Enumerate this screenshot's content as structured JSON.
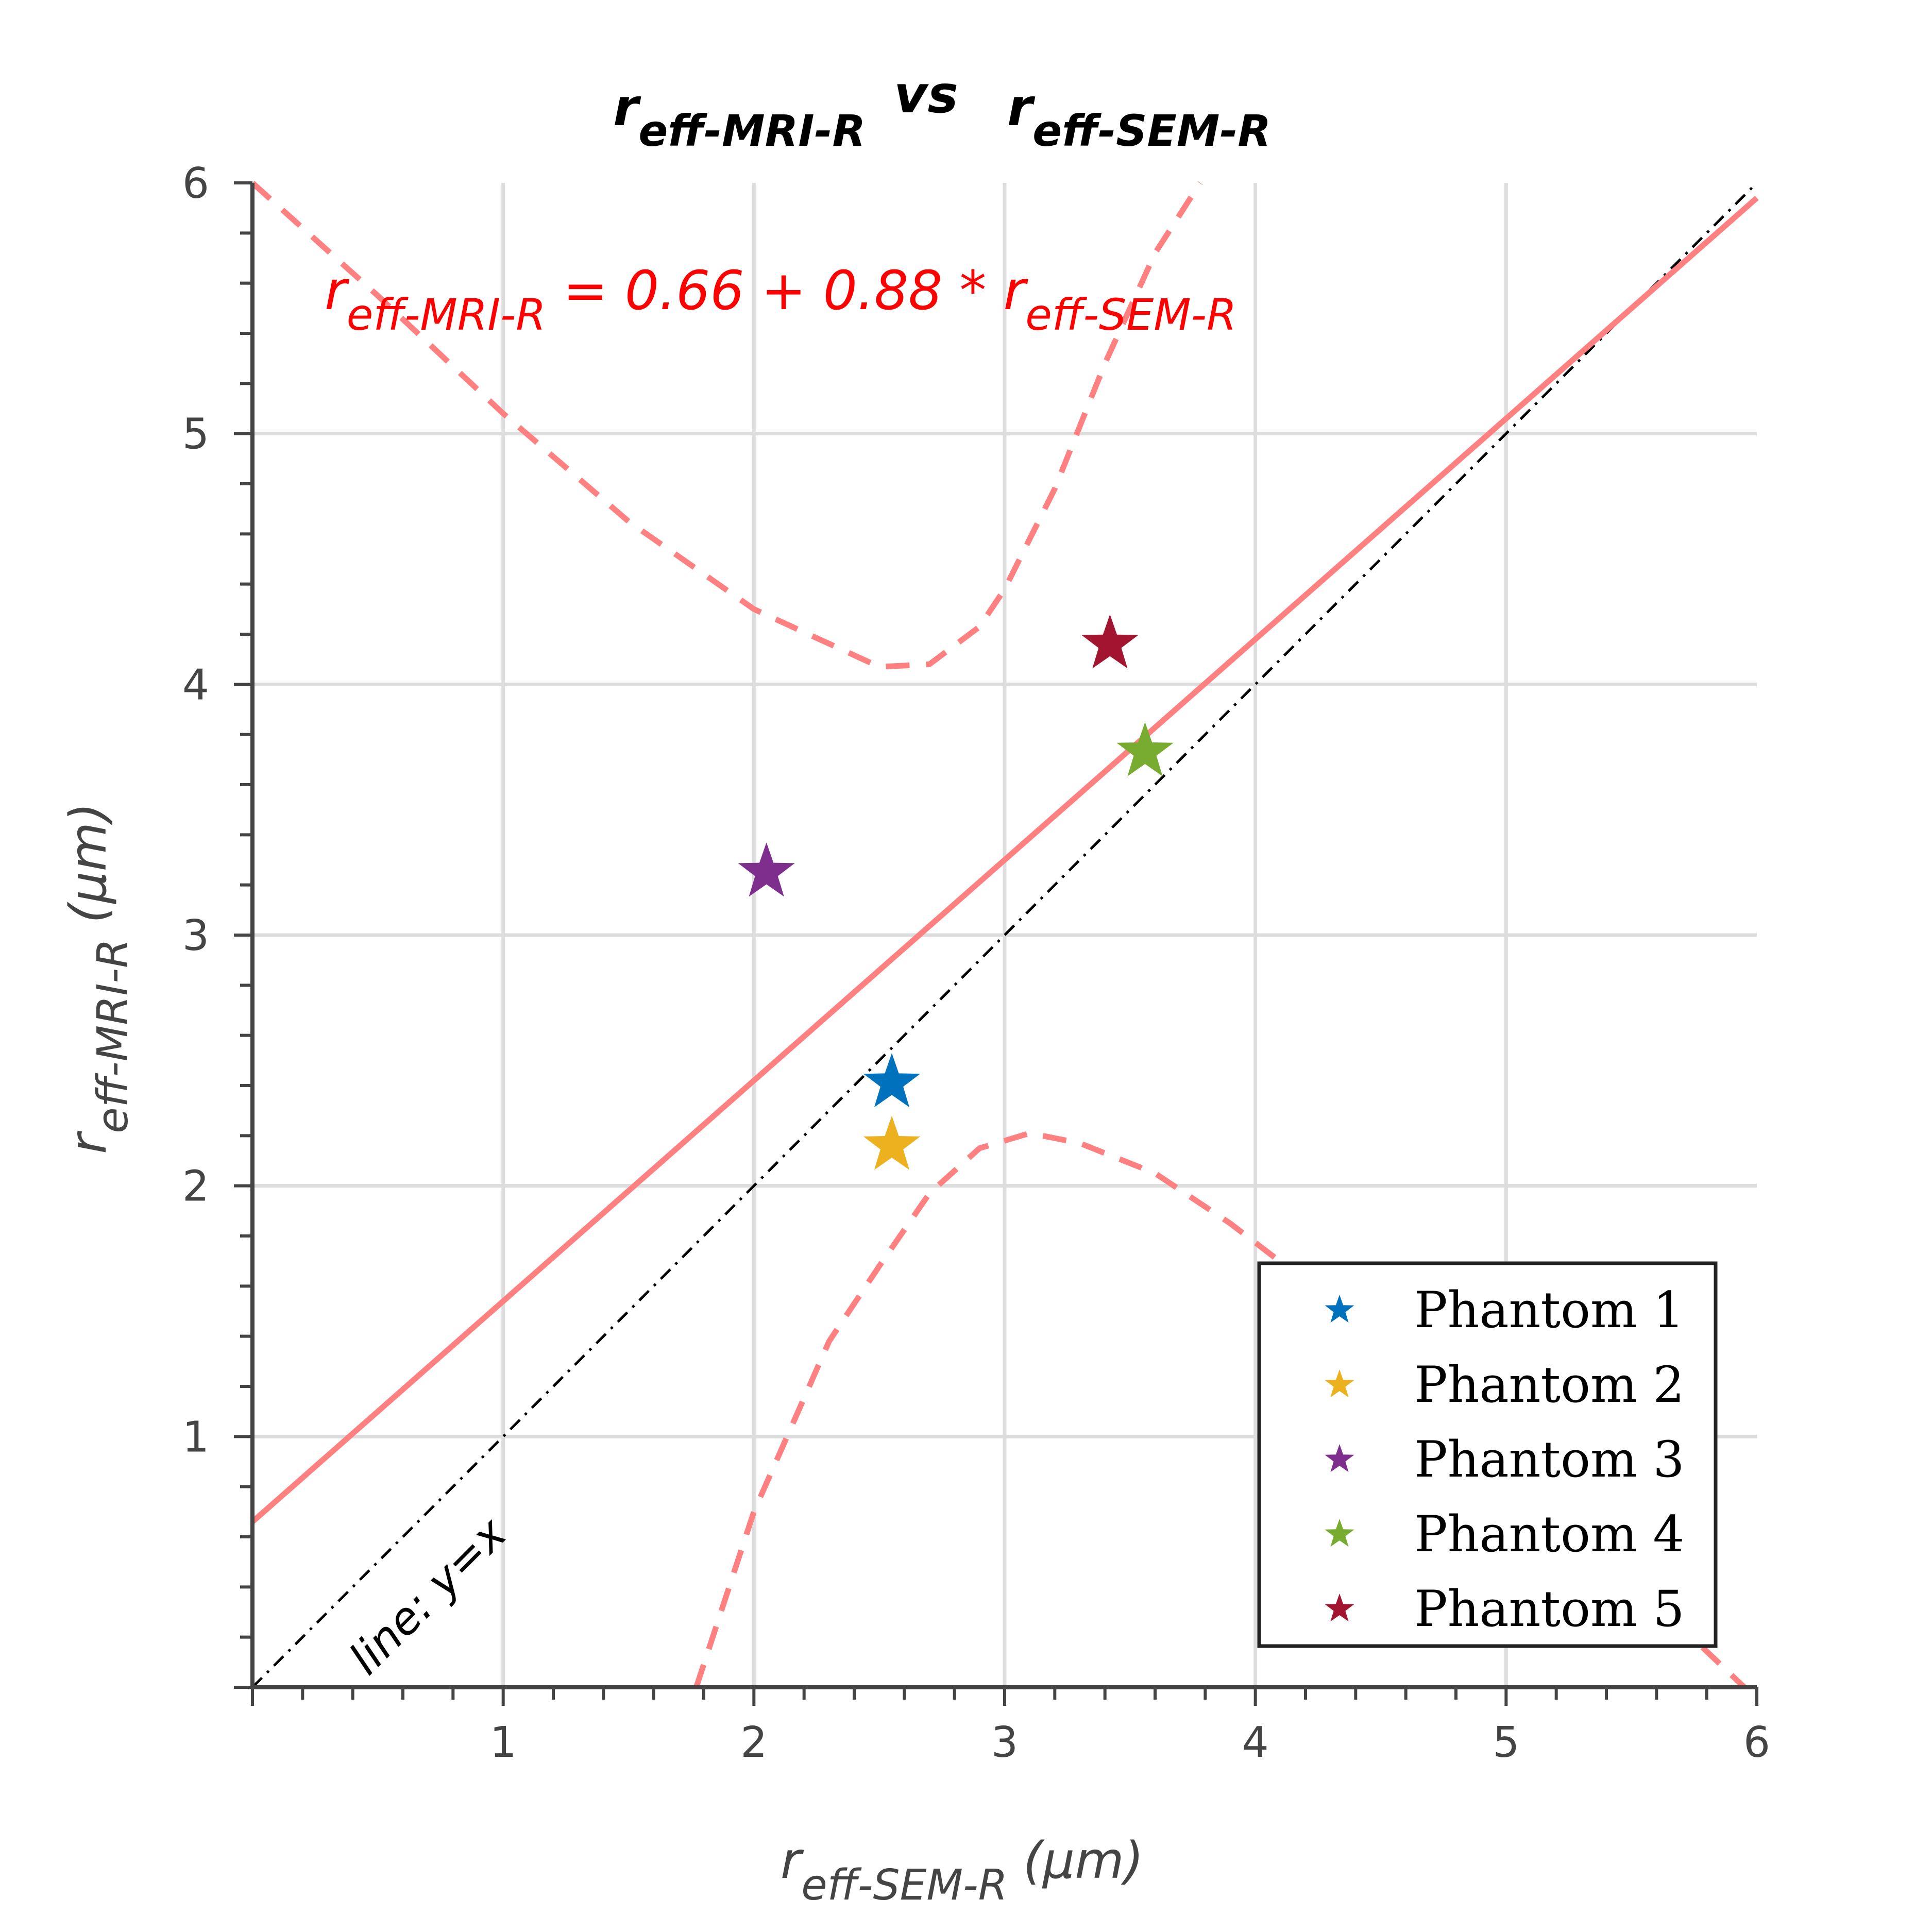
{
  "chart_data": {
    "type": "scatter",
    "title": {
      "main_a": "r",
      "sub_a": "eff-MRI-R",
      "mid": "vs",
      "main_b": "r",
      "sub_b": "eff-SEM-R"
    },
    "xlabel": {
      "main": "r",
      "sub": "eff-SEM-R",
      "unit": "(μm)"
    },
    "ylabel": {
      "main": "r",
      "sub": "eff-MRI-R",
      "unit": "(μm)"
    },
    "xlim": [
      0,
      6
    ],
    "ylim": [
      0,
      6
    ],
    "x_ticks": [
      1,
      2,
      3,
      4,
      5,
      6
    ],
    "y_ticks": [
      1,
      2,
      3,
      4,
      5,
      6
    ],
    "grid": true,
    "legend_position": "bottom-right",
    "series": [
      {
        "name": "Phantom 1",
        "color": "#0072BD",
        "x": [
          2.55
        ],
        "y": [
          2.41
        ]
      },
      {
        "name": "Phantom 2",
        "color": "#EDB120",
        "x": [
          2.55
        ],
        "y": [
          2.16
        ]
      },
      {
        "name": "Phantom 3",
        "color": "#7E2F8E",
        "x": [
          2.05
        ],
        "y": [
          3.25
        ]
      },
      {
        "name": "Phantom 4",
        "color": "#77AC30",
        "x": [
          3.56
        ],
        "y": [
          3.73
        ]
      },
      {
        "name": "Phantom 5",
        "color": "#A2142F",
        "x": [
          3.42
        ],
        "y": [
          4.16
        ]
      }
    ],
    "fit_line": {
      "intercept": 0.66,
      "slope": 0.88,
      "color": "#ff8080",
      "equation": {
        "lhs_main": "r",
        "lhs_sub": "eff-MRI-R",
        "rhs": " = 0.66 + 0.88 * ",
        "rhs_main": "r",
        "rhs_sub": "eff-SEM-R"
      }
    },
    "prediction_band": {
      "upper": [
        [
          0,
          6.0
        ],
        [
          0.5,
          5.55
        ],
        [
          1.0,
          5.08
        ],
        [
          1.5,
          4.65
        ],
        [
          2.0,
          4.3
        ],
        [
          2.5,
          4.07
        ],
        [
          2.7,
          4.08
        ],
        [
          2.9,
          4.23
        ],
        [
          3.0,
          4.38
        ],
        [
          3.2,
          4.78
        ],
        [
          3.4,
          5.28
        ],
        [
          3.6,
          5.72
        ],
        [
          3.78,
          6.0
        ]
      ],
      "lower": [
        [
          1.77,
          0.0
        ],
        [
          2.0,
          0.7
        ],
        [
          2.3,
          1.38
        ],
        [
          2.5,
          1.68
        ],
        [
          2.7,
          1.97
        ],
        [
          2.9,
          2.15
        ],
        [
          3.1,
          2.21
        ],
        [
          3.3,
          2.17
        ],
        [
          3.6,
          2.05
        ],
        [
          3.9,
          1.85
        ],
        [
          4.2,
          1.62
        ],
        [
          4.6,
          1.27
        ],
        [
          5.0,
          0.9
        ],
        [
          5.5,
          0.43
        ],
        [
          5.95,
          0.0
        ]
      ]
    },
    "reference_line": {
      "label": "line: y=x",
      "slope": 1,
      "intercept": 0
    }
  }
}
